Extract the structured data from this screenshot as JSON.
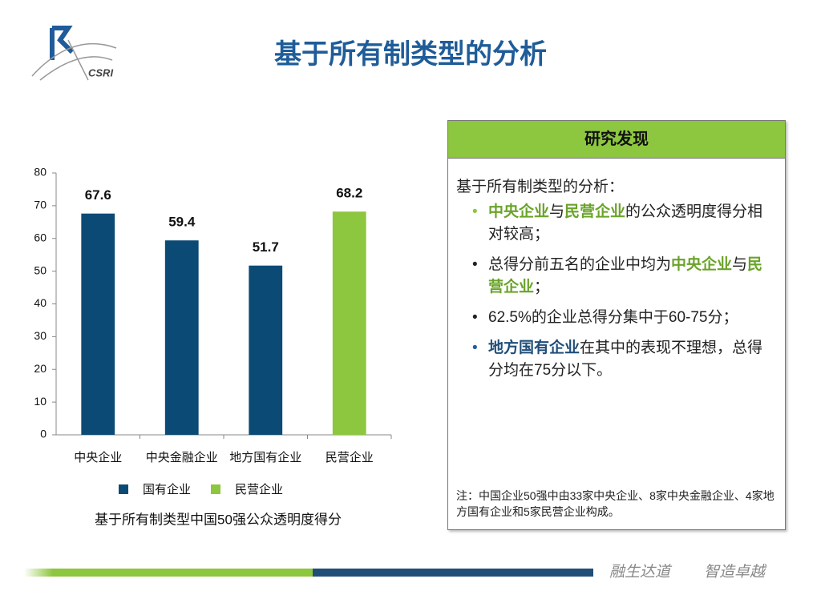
{
  "header": {
    "title": "基于所有制类型的分析",
    "logo_text": "CSRI"
  },
  "chart_data": {
    "type": "bar",
    "title": "基于所有制类型中国50强公众透明度得分",
    "categories": [
      "中央企业",
      "中央金融企业",
      "地方国有企业",
      "民营企业"
    ],
    "series": [
      {
        "name": "国有企业",
        "color": "#0b4a74",
        "values": [
          67.6,
          59.4,
          51.7,
          null
        ]
      },
      {
        "name": "民营企业",
        "color": "#8dc63f",
        "values": [
          null,
          null,
          null,
          68.2
        ]
      }
    ],
    "ylim": [
      0,
      80
    ],
    "yticks": [
      0,
      10,
      20,
      30,
      40,
      50,
      60,
      70,
      80
    ],
    "grid": false
  },
  "findings": {
    "heading": "研究发现",
    "intro": "基于所有制类型的分析：",
    "bullets": [
      [
        "中央企业",
        "与",
        "民营企业",
        "的公众透明度得分相对较高；"
      ],
      [
        "总得分前五名的企业中均为",
        "中央企业",
        "与",
        "民营企业",
        "；"
      ],
      [
        "62.5%的企业总得分集中于60-75分；"
      ],
      [
        "地方国有企业",
        "在其中的表现不理想，总得分均在75分以下。"
      ]
    ],
    "note": "注：中国企业50强中由33家中央企业、8家中央金融企业、4家地方国有企业和5家民营企业构成。"
  },
  "footer": {
    "slogan": [
      "融生达道",
      "智造卓越"
    ]
  }
}
